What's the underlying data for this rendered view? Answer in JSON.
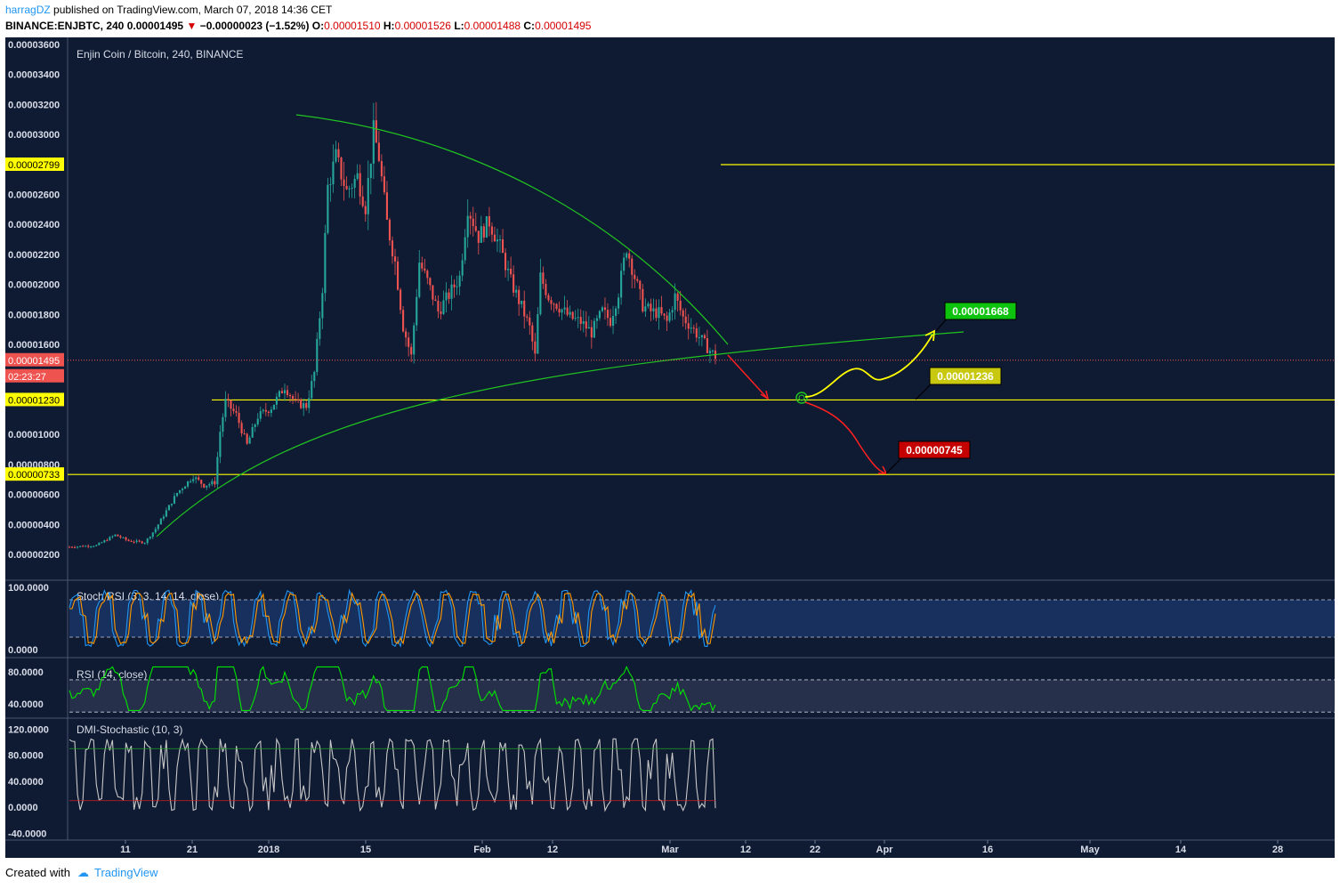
{
  "header": {
    "author": "harragDZ",
    "published": "published on TradingView.com, March 07, 2018 14:36 CET",
    "symbol": "BINANCE:ENJBTC, 240",
    "price": "0.00001495",
    "change": "−0.00000023 (−1.52%)",
    "o_label": "O:",
    "o": "0.00001510",
    "h_label": "H:",
    "h": "0.00001526",
    "l_label": "L:",
    "l": "0.00001488",
    "c_label": "C:",
    "c": "0.00001495"
  },
  "footer": {
    "created": "Created with",
    "brand": "TradingView"
  },
  "colors": {
    "background": "#0f1a33",
    "up": "#26a69a",
    "down": "#ef5350",
    "curve": "#21c521",
    "level": "#ffff00",
    "price_line": "#ff5252",
    "stoch_k": "#2196f3",
    "stoch_d": "#ff9800",
    "rsi": "#00e600",
    "dmi": "#c8c8c8"
  },
  "chart_data": {
    "type": "candlestick",
    "title": "Enjin Coin / Bitcoin, 240, BINANCE",
    "y_ticks": [
      "0.00003600",
      "0.00003400",
      "0.00003200",
      "0.00003000",
      "0.00002600",
      "0.00002400",
      "0.00002200",
      "0.00002000",
      "0.00001800",
      "0.00001600",
      "0.00001000",
      "0.00000800",
      "0.00000600",
      "0.00000400",
      "0.00000200"
    ],
    "ylim": [
      1.5e-06,
      3.68e-05
    ],
    "x_ticks": [
      "11",
      "21",
      "2018",
      "15",
      "Feb",
      "12",
      "Mar",
      "12",
      "22",
      "Apr",
      "16",
      "May",
      "14",
      "28"
    ],
    "last_price": {
      "value": "0.00001495",
      "countdown": "02:23:27"
    },
    "horizontal_levels": [
      {
        "label": "0.00002799",
        "value": 2.799e-05
      },
      {
        "label": "0.00001230",
        "value": 1.23e-05
      },
      {
        "label": "0.00000733",
        "value": 7.33e-06
      }
    ],
    "targets": [
      {
        "label": "0.00001668",
        "value": 1.668e-05,
        "color": "#0ec30e"
      },
      {
        "label": "0.00001236",
        "value": 1.236e-05,
        "color": "#c8c80e"
      },
      {
        "label": "0.00000745",
        "value": 7.45e-06,
        "color": "#c40000"
      }
    ],
    "series": [
      {
        "name": "ENJBTC",
        "path": [
          [
            0,
            2.5e-06
          ],
          [
            10,
            2.6e-06
          ],
          [
            17,
            3.3e-06
          ],
          [
            22,
            2.9e-06
          ],
          [
            28,
            2.8e-06
          ],
          [
            32,
            3.7e-06
          ],
          [
            40,
            6.1e-06
          ],
          [
            46,
            7.2e-06
          ],
          [
            50,
            6.6e-06
          ],
          [
            54,
            6.8e-06
          ],
          [
            56,
            1.02e-05
          ],
          [
            58,
            1.22e-05
          ],
          [
            62,
            1.13e-05
          ],
          [
            66,
            9.3e-06
          ],
          [
            70,
            1.12e-05
          ],
          [
            75,
            1.18e-05
          ],
          [
            80,
            1.32e-05
          ],
          [
            84,
            1.21e-05
          ],
          [
            88,
            1.19e-05
          ],
          [
            91,
            1.41e-05
          ],
          [
            94,
            1.98e-05
          ],
          [
            96,
            2.65e-05
          ],
          [
            99,
            2.85e-05
          ],
          [
            103,
            2.62e-05
          ],
          [
            107,
            2.72e-05
          ],
          [
            110,
            2.52e-05
          ],
          [
            113,
            3.02e-05
          ],
          [
            115,
            2.85e-05
          ],
          [
            118,
            2.41e-05
          ],
          [
            121,
            2.15e-05
          ],
          [
            124,
            1.72e-05
          ],
          [
            127,
            1.52e-05
          ],
          [
            130,
            2.15e-05
          ],
          [
            133,
            2.02e-05
          ],
          [
            137,
            1.82e-05
          ],
          [
            141,
            1.93e-05
          ],
          [
            145,
            2.05e-05
          ],
          [
            148,
            2.52e-05
          ],
          [
            152,
            2.32e-05
          ],
          [
            156,
            2.42e-05
          ],
          [
            160,
            2.25e-05
          ],
          [
            164,
            2.02e-05
          ],
          [
            168,
            1.85e-05
          ],
          [
            171,
            1.71e-05
          ],
          [
            173,
            1.52e-05
          ],
          [
            175,
            2.05e-05
          ],
          [
            178,
            1.92e-05
          ],
          [
            182,
            1.85e-05
          ],
          [
            186,
            1.78e-05
          ],
          [
            190,
            1.75e-05
          ],
          [
            194,
            1.68e-05
          ],
          [
            198,
            1.82e-05
          ],
          [
            201,
            1.76e-05
          ],
          [
            204,
            1.95e-05
          ],
          [
            207,
            2.25e-05
          ],
          [
            210,
            2.05e-05
          ],
          [
            213,
            1.86e-05
          ],
          [
            216,
            1.82e-05
          ],
          [
            219,
            1.81e-05
          ],
          [
            222,
            1.75e-05
          ],
          [
            225,
            1.92e-05
          ],
          [
            228,
            1.78e-05
          ],
          [
            231,
            1.72e-05
          ],
          [
            234,
            1.65e-05
          ],
          [
            237,
            1.58e-05
          ],
          [
            240,
            1.52e-05
          ]
        ]
      },
      {
        "name": "Stoch RSI (3, 3, 14, 14, close)",
        "scale": [
          0,
          100
        ],
        "ticks": [
          "100.0000",
          "0.0000"
        ],
        "bands": [
          80,
          20
        ]
      },
      {
        "name": "RSI (14, close)",
        "scale": [
          28,
          92
        ],
        "ticks": [
          "80.0000",
          "40.0000"
        ],
        "bands": [
          70,
          30
        ]
      },
      {
        "name": "DMI-Stochastic (10, 3)",
        "scale": [
          -45,
          130
        ],
        "ticks": [
          "120.0000",
          "80.0000",
          "40.0000",
          "0.0000",
          "-40.0000"
        ],
        "bands": [
          90,
          10
        ]
      }
    ]
  }
}
